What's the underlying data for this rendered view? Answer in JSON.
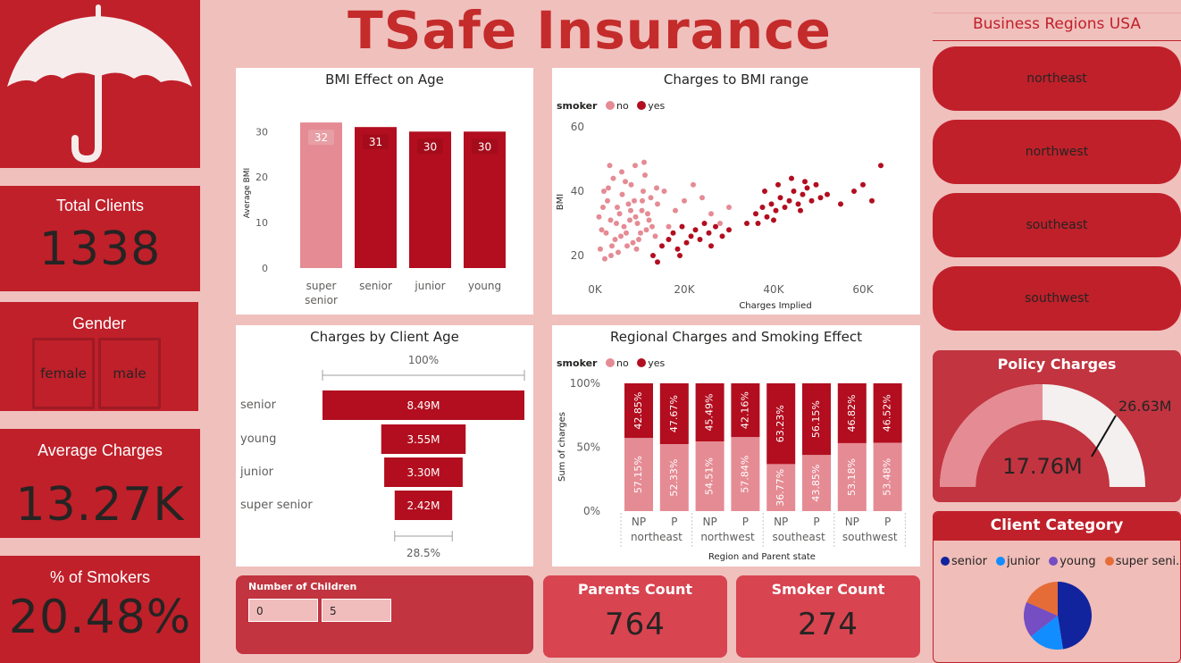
{
  "brand": {
    "title": "TSafe Insurance",
    "logo": "umbrella-icon"
  },
  "kpis": {
    "total_clients": {
      "label": "Total Clients",
      "value": "1338"
    },
    "gender": {
      "label": "Gender",
      "options": [
        "female",
        "male"
      ]
    },
    "avg_charges": {
      "label": "Average Charges",
      "value": "13.27K"
    },
    "smokers_pct": {
      "label": "% of Smokers",
      "value": "20.48%"
    }
  },
  "regions": {
    "title": "Business Regions USA",
    "items": [
      "northeast",
      "northwest",
      "southeast",
      "southwest"
    ]
  },
  "policy_charges": {
    "title": "Policy Charges",
    "value": "17.76M",
    "target": "26.63M"
  },
  "client_category": {
    "title": "Client Category",
    "legend": [
      "senior",
      "junior",
      "young",
      "super seni..."
    ]
  },
  "children_slicer": {
    "title": "Number of Children",
    "min": "0",
    "max": "5"
  },
  "parents_count": {
    "label": "Parents Count",
    "value": "764"
  },
  "smoker_count": {
    "label": "Smoker Count",
    "value": "274"
  },
  "colors": {
    "dark_red": "#b20e1f",
    "pink": "#e58b94",
    "card_red": "#c0202a",
    "background": "#f0c0bd"
  },
  "chart_data": [
    {
      "type": "bar",
      "title": "BMI Effect on Age",
      "ylabel": "Average BMI",
      "xlabel": "",
      "ylim": [
        0,
        33
      ],
      "yticks": [
        "0",
        "10",
        "20",
        "30"
      ],
      "categories": [
        "super senior",
        "senior",
        "junior",
        "young"
      ],
      "values": [
        32,
        31,
        30,
        30
      ],
      "data_labels": [
        "32",
        "31",
        "30",
        "30"
      ],
      "grid": false
    },
    {
      "type": "scatter",
      "title": "Charges to BMI range",
      "xlabel": "Charges Implied",
      "ylabel": "BMI",
      "xticks": [
        "0K",
        "20K",
        "40K",
        "60K"
      ],
      "yticks": [
        "20",
        "40",
        "60"
      ],
      "xlim": [
        0,
        65000
      ],
      "ylim": [
        15,
        60
      ],
      "legend_title": "smoker",
      "series": [
        {
          "name": "no",
          "points": [
            [
              1200,
              22
            ],
            [
              2500,
              27
            ],
            [
              3500,
              31
            ],
            [
              4500,
              25
            ],
            [
              5500,
              33
            ],
            [
              6500,
              29
            ],
            [
              7500,
              36
            ],
            [
              8500,
              24
            ],
            [
              9500,
              30
            ],
            [
              10500,
              34
            ],
            [
              11500,
              28
            ],
            [
              12500,
              38
            ],
            [
              13500,
              26
            ],
            [
              1800,
              35
            ],
            [
              2200,
              19
            ],
            [
              3000,
              41
            ],
            [
              4100,
              44
            ],
            [
              5200,
              21
            ],
            [
              6100,
              39
            ],
            [
              7200,
              23
            ],
            [
              8100,
              42
            ],
            [
              9100,
              32
            ],
            [
              10200,
              27
            ],
            [
              11200,
              45
            ],
            [
              12100,
              31
            ],
            [
              14000,
              36
            ],
            [
              15500,
              40
            ],
            [
              16500,
              29
            ],
            [
              18000,
              34
            ],
            [
              20000,
              37
            ],
            [
              22000,
              42
            ],
            [
              24000,
              38
            ],
            [
              26000,
              33
            ],
            [
              28000,
              30
            ],
            [
              30000,
              35
            ],
            [
              1500,
              28
            ],
            [
              2800,
              37
            ],
            [
              3800,
              23
            ],
            [
              4800,
              30
            ],
            [
              5800,
              26
            ],
            [
              6800,
              43
            ],
            [
              7800,
              31
            ],
            [
              8800,
              37
            ],
            [
              9800,
              25
            ],
            [
              10800,
              40
            ],
            [
              11800,
              33
            ],
            [
              12800,
              29
            ],
            [
              13800,
              41
            ],
            [
              900,
              32
            ],
            [
              2000,
              40
            ],
            [
              3300,
              48
            ],
            [
              6000,
              46
            ],
            [
              9000,
              48
            ],
            [
              11000,
              49
            ],
            [
              3600,
              20
            ],
            [
              5000,
              35
            ],
            [
              7000,
              27
            ],
            [
              8000,
              34
            ],
            [
              9300,
              22
            ],
            [
              10600,
              37
            ]
          ]
        },
        {
          "name": "yes",
          "points": [
            [
              13000,
              20
            ],
            [
              15000,
              23
            ],
            [
              16500,
              25
            ],
            [
              17500,
              27
            ],
            [
              18500,
              22
            ],
            [
              19500,
              29
            ],
            [
              20500,
              24
            ],
            [
              21500,
              26
            ],
            [
              22500,
              28
            ],
            [
              23500,
              25
            ],
            [
              24500,
              30
            ],
            [
              25500,
              27
            ],
            [
              27000,
              29
            ],
            [
              28500,
              26
            ],
            [
              14000,
              18
            ],
            [
              19000,
              20
            ],
            [
              26000,
              23
            ],
            [
              30000,
              28
            ],
            [
              34000,
              30
            ],
            [
              36000,
              33
            ],
            [
              37500,
              35
            ],
            [
              38500,
              32
            ],
            [
              39500,
              36
            ],
            [
              40500,
              34
            ],
            [
              41500,
              38
            ],
            [
              42500,
              35
            ],
            [
              43500,
              37
            ],
            [
              44500,
              40
            ],
            [
              45500,
              36
            ],
            [
              46500,
              39
            ],
            [
              47500,
              41
            ],
            [
              48500,
              37
            ],
            [
              49500,
              42
            ],
            [
              50500,
              38
            ],
            [
              38000,
              40
            ],
            [
              41000,
              42
            ],
            [
              44000,
              44
            ],
            [
              47000,
              43
            ],
            [
              36500,
              30
            ],
            [
              40000,
              31
            ],
            [
              46000,
              34
            ],
            [
              52000,
              39
            ],
            [
              58000,
              40
            ],
            [
              60000,
              42
            ],
            [
              62000,
              37
            ],
            [
              64000,
              48
            ],
            [
              55000,
              36
            ]
          ]
        }
      ]
    },
    {
      "type": "bar",
      "title": "Charges by Client Age",
      "categories": [
        "senior",
        "young",
        "junior",
        "super senior"
      ],
      "values": [
        8.49,
        3.55,
        3.3,
        2.42
      ],
      "data_labels": [
        "8.49M",
        "3.55M",
        "3.30M",
        "2.42M"
      ],
      "top_label": "100%",
      "bottom_label": "28.5%"
    },
    {
      "type": "bar",
      "title": "Regional Charges and Smoking Effect",
      "xlabel": "Region and Parent state",
      "ylabel": "Sum of charges",
      "yticks": [
        "0%",
        "50%",
        "100%"
      ],
      "legend_title": "smoker",
      "groups": [
        "northeast",
        "northwest",
        "southeast",
        "southwest"
      ],
      "categories": [
        "NP",
        "P",
        "NP",
        "P",
        "NP",
        "P",
        "NP",
        "P"
      ],
      "series": [
        {
          "name": "no",
          "values": [
            57.15,
            52.33,
            54.51,
            57.84,
            36.77,
            43.85,
            53.18,
            53.48
          ],
          "labels": [
            "57.15%",
            "52.33%",
            "54.51%",
            "57.84%",
            "36.77%",
            "43.85%",
            "53.18%",
            "53.48%"
          ]
        },
        {
          "name": "yes",
          "values": [
            42.85,
            47.67,
            45.49,
            42.16,
            63.23,
            56.15,
            46.82,
            46.52
          ],
          "labels": [
            "42.85%",
            "47.67%",
            "45.49%",
            "42.16%",
            "63.23%",
            "56.15%",
            "46.82%",
            "46.52%"
          ]
        }
      ]
    },
    {
      "type": "pie",
      "title": "Client Category",
      "categories": [
        "senior",
        "junior",
        "young",
        "super senior"
      ],
      "values": [
        47.5,
        17,
        17,
        18.5
      ],
      "colors": [
        "#12239e",
        "#118dff",
        "#744ec2",
        "#e66c37"
      ]
    }
  ]
}
